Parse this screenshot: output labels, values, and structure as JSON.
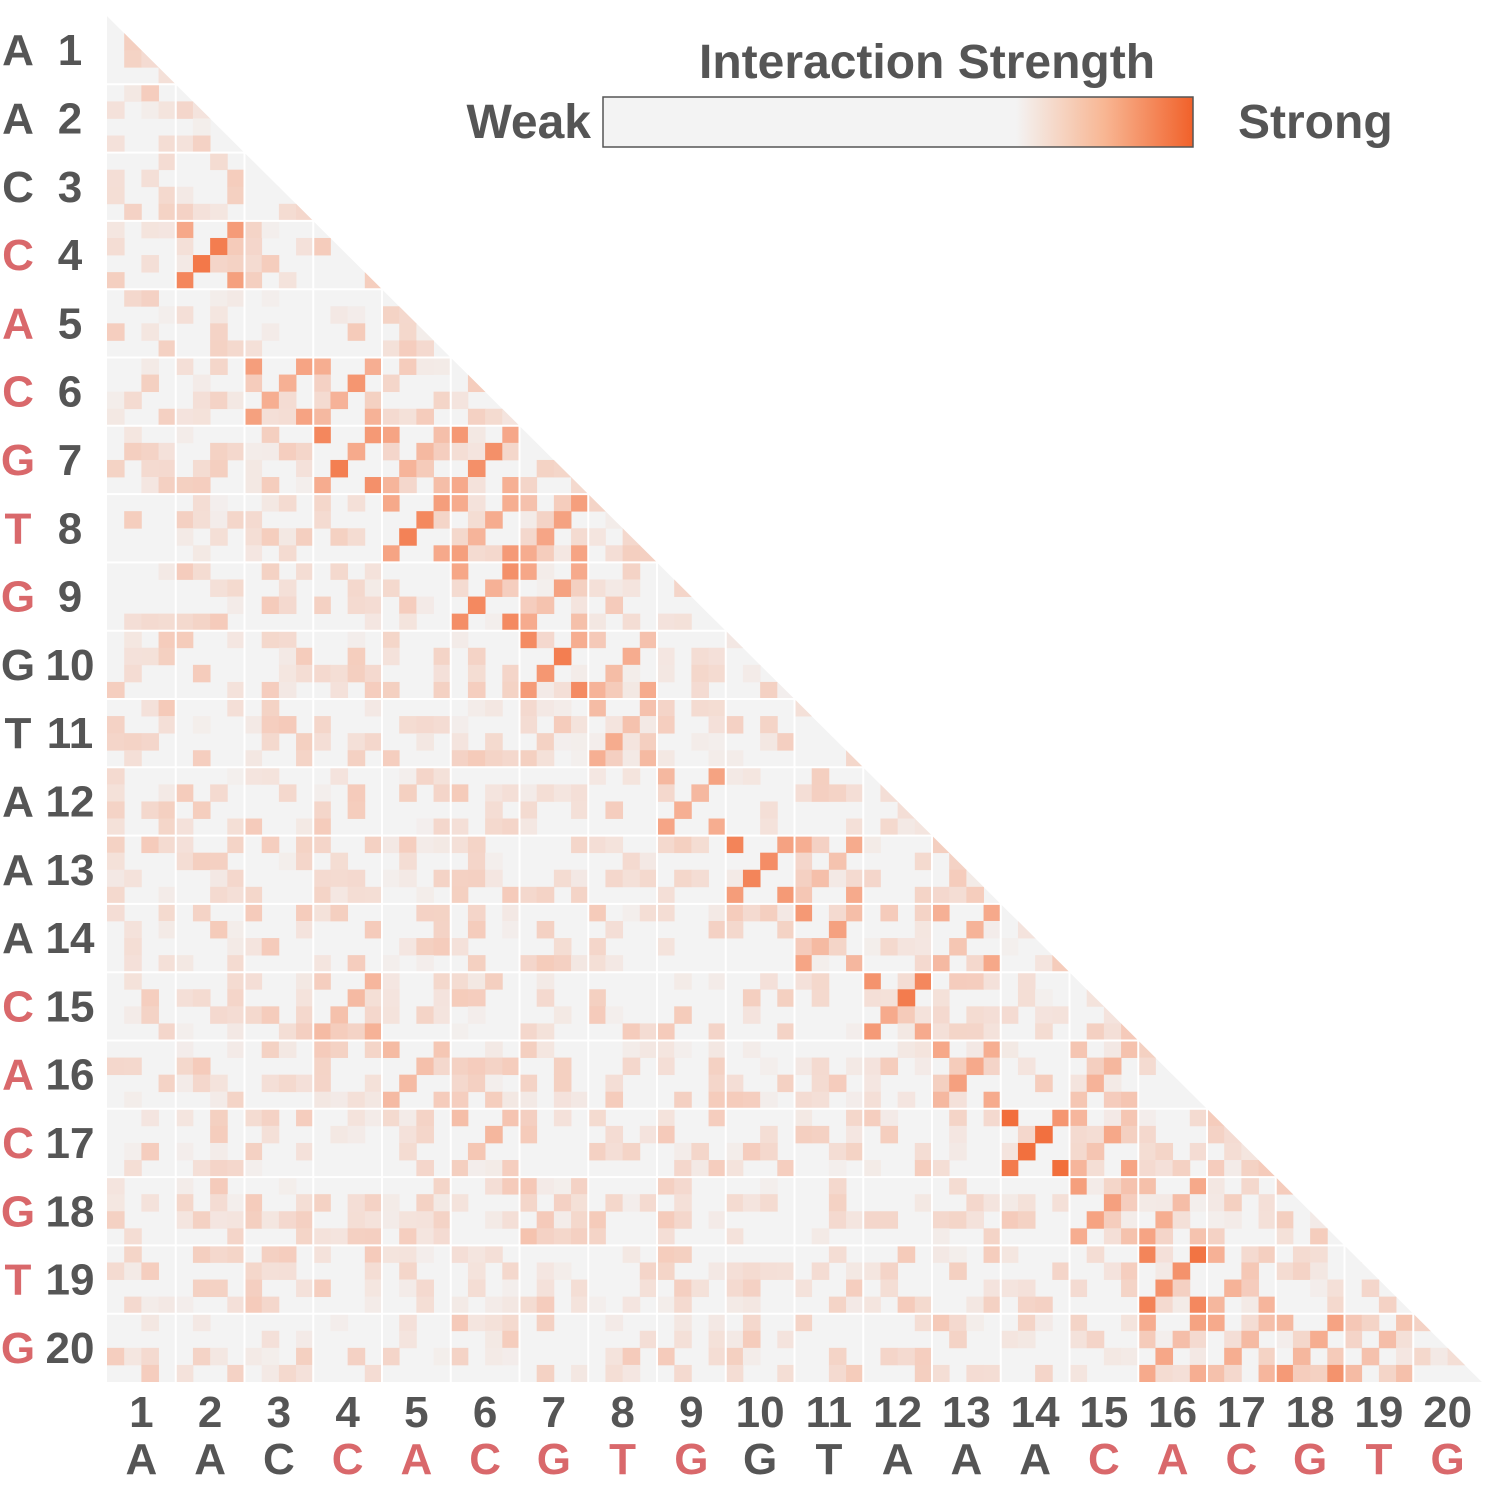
{
  "colors": {
    "neutral_base": "#555555",
    "highlight_base": "#d9686b",
    "cell_background": "#f3f3f3",
    "strong": "#f1612a",
    "block_line": "#ffffff"
  },
  "legend": {
    "title": "Interaction Strength",
    "weak_label": "Weak",
    "strong_label": "Strong",
    "placement": "top-right"
  },
  "chart_data": {
    "type": "heatmap",
    "layout": "lower-triangle",
    "positions": [
      1,
      2,
      3,
      4,
      5,
      6,
      7,
      8,
      9,
      10,
      11,
      12,
      13,
      14,
      15,
      16,
      17,
      18,
      19,
      20
    ],
    "sequence": [
      "A",
      "A",
      "C",
      "C",
      "A",
      "C",
      "G",
      "T",
      "G",
      "G",
      "T",
      "A",
      "A",
      "A",
      "C",
      "A",
      "C",
      "G",
      "T",
      "G"
    ],
    "highlighted": [
      false,
      false,
      false,
      true,
      true,
      true,
      true,
      true,
      true,
      false,
      false,
      false,
      false,
      false,
      true,
      true,
      true,
      true,
      true,
      true
    ],
    "sub_cells_per_position": 4,
    "value_range": [
      0,
      1
    ],
    "strong_cells": [
      {
        "row": 4,
        "col": 2,
        "value": 0.85
      },
      {
        "row": 6,
        "col": 3,
        "value": 0.6
      },
      {
        "row": 6,
        "col": 4,
        "value": 0.65
      },
      {
        "row": 7,
        "col": 4,
        "value": 0.8
      },
      {
        "row": 7,
        "col": 5,
        "value": 0.55
      },
      {
        "row": 7,
        "col": 6,
        "value": 0.7
      },
      {
        "row": 8,
        "col": 5,
        "value": 0.9
      },
      {
        "row": 8,
        "col": 6,
        "value": 0.65
      },
      {
        "row": 8,
        "col": 7,
        "value": 0.6
      },
      {
        "row": 9,
        "col": 6,
        "value": 0.75
      },
      {
        "row": 9,
        "col": 7,
        "value": 0.6
      },
      {
        "row": 10,
        "col": 7,
        "value": 0.85
      },
      {
        "row": 10,
        "col": 8,
        "value": 0.5
      },
      {
        "row": 11,
        "col": 8,
        "value": 0.55
      },
      {
        "row": 12,
        "col": 9,
        "value": 0.6
      },
      {
        "row": 13,
        "col": 10,
        "value": 0.85
      },
      {
        "row": 13,
        "col": 11,
        "value": 0.5
      },
      {
        "row": 14,
        "col": 11,
        "value": 0.65
      },
      {
        "row": 14,
        "col": 13,
        "value": 0.55
      },
      {
        "row": 15,
        "col": 4,
        "value": 0.45
      },
      {
        "row": 15,
        "col": 12,
        "value": 0.9
      },
      {
        "row": 16,
        "col": 5,
        "value": 0.4
      },
      {
        "row": 16,
        "col": 13,
        "value": 0.6
      },
      {
        "row": 16,
        "col": 15,
        "value": 0.45
      },
      {
        "row": 17,
        "col": 6,
        "value": 0.45
      },
      {
        "row": 17,
        "col": 14,
        "value": 0.95
      },
      {
        "row": 17,
        "col": 15,
        "value": 0.55
      },
      {
        "row": 18,
        "col": 7,
        "value": 0.35
      },
      {
        "row": 18,
        "col": 15,
        "value": 0.6
      },
      {
        "row": 18,
        "col": 16,
        "value": 0.55
      },
      {
        "row": 19,
        "col": 16,
        "value": 0.9
      },
      {
        "row": 19,
        "col": 17,
        "value": 0.45
      },
      {
        "row": 20,
        "col": 16,
        "value": 0.6
      },
      {
        "row": 20,
        "col": 17,
        "value": 0.55
      },
      {
        "row": 20,
        "col": 18,
        "value": 0.7
      },
      {
        "row": 20,
        "col": 19,
        "value": 0.5
      }
    ]
  }
}
